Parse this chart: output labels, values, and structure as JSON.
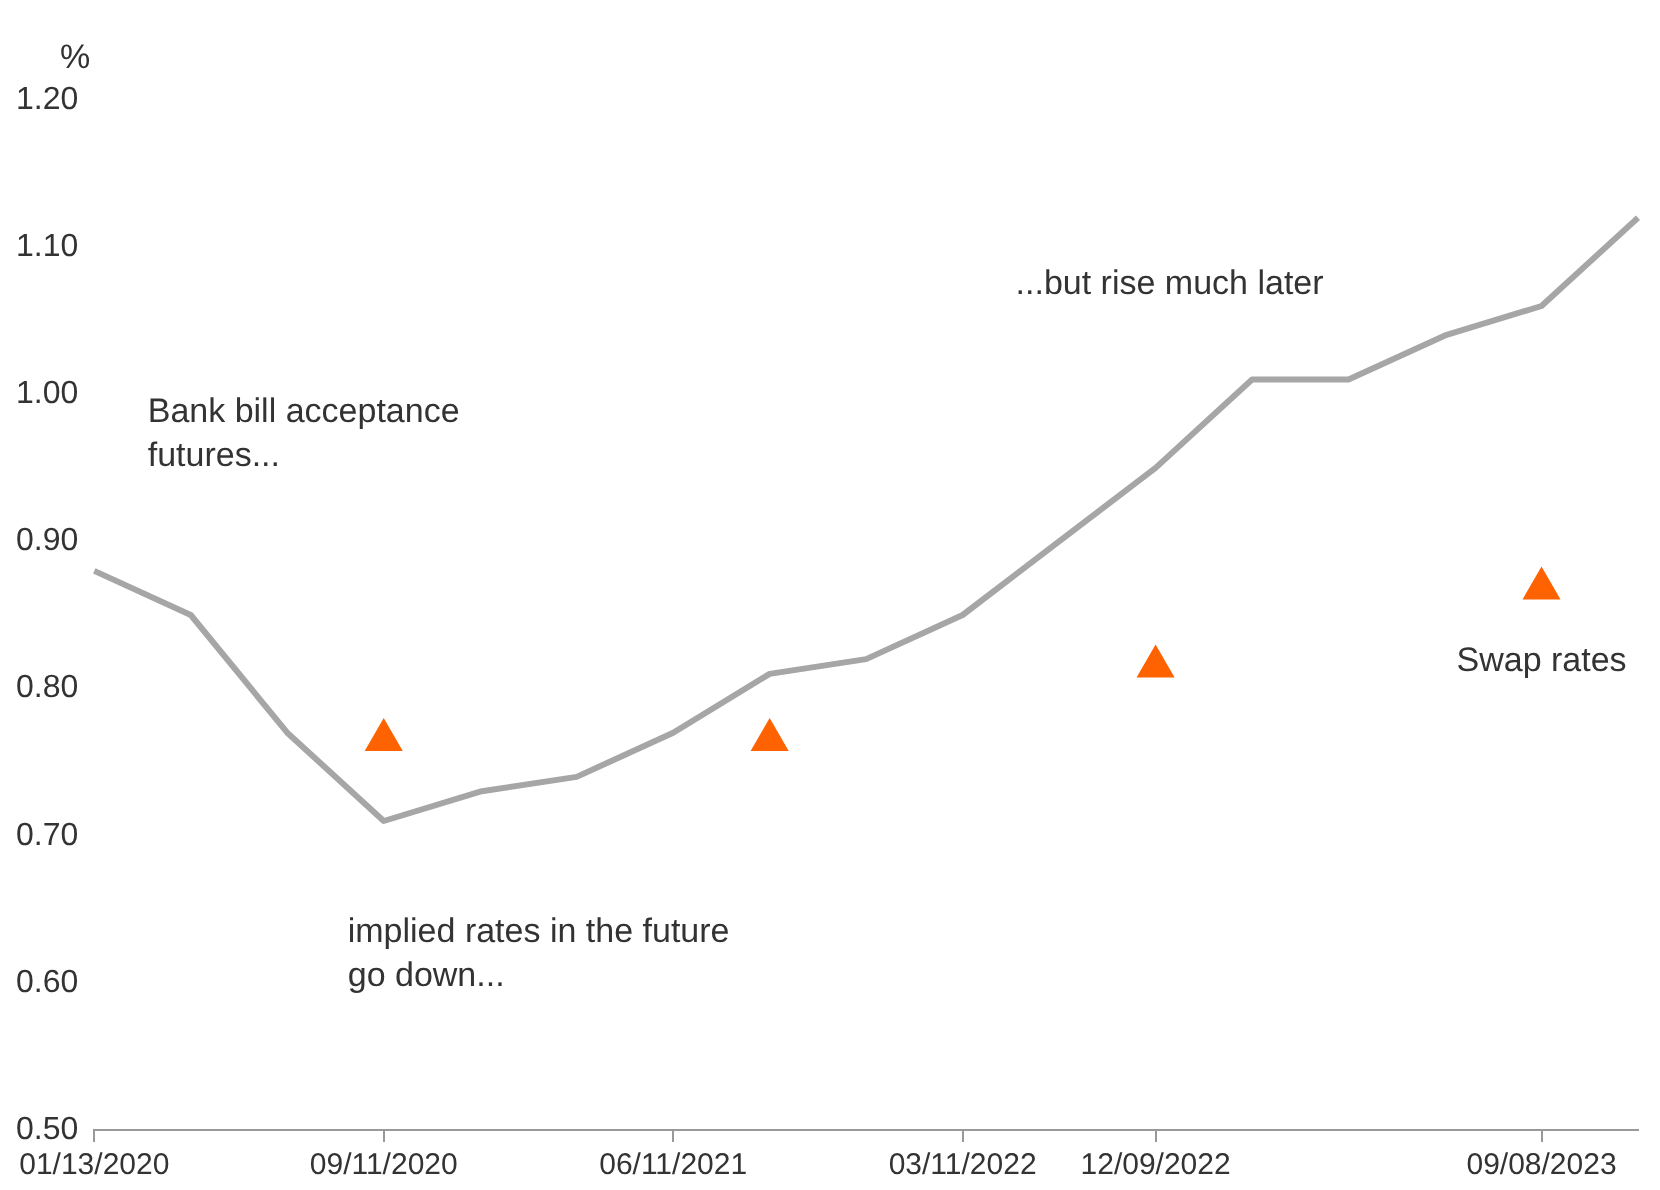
{
  "chart_data": {
    "type": "line",
    "ylabel": "%",
    "categories": [
      "01/13/2020",
      null,
      null,
      "09/11/2020",
      null,
      null,
      "06/11/2021",
      null,
      null,
      "03/11/2022",
      null,
      "12/09/2022",
      null,
      null,
      null,
      "09/08/2023",
      null
    ],
    "series": [
      {
        "color": "#a6a6a6",
        "values": [
          0.88,
          0.85,
          0.77,
          0.71,
          0.73,
          0.74,
          0.77,
          0.81,
          0.82,
          0.85,
          0.9,
          0.95,
          1.01,
          1.01,
          1.04,
          1.06,
          1.12
        ]
      },
      {
        "type": "scatter",
        "name": "Swap rates",
        "color": "#ff6200",
        "marker": "triangle",
        "values": [
          null,
          null,
          null,
          0.765,
          null,
          null,
          null,
          0.765,
          null,
          null,
          null,
          0.815,
          null,
          null,
          null,
          0.868,
          null
        ]
      }
    ],
    "ylim": [
      0.5,
      1.2
    ],
    "yticks": [
      {
        "value": 0.5,
        "label": "0.50"
      },
      {
        "value": 0.6,
        "label": "0.60"
      },
      {
        "value": 0.7,
        "label": "0.70"
      },
      {
        "value": 0.8,
        "label": "0.80"
      },
      {
        "value": 0.9,
        "label": "0.90"
      },
      {
        "value": 1.0,
        "label": "1.00"
      },
      {
        "value": 1.1,
        "label": "1.10"
      },
      {
        "value": 1.2,
        "label": "1.20"
      }
    ],
    "grid": false,
    "legend": false,
    "annotations": [
      "Bank bill acceptance futures...",
      "...but rise much later",
      "implied rates in the future go down..."
    ]
  }
}
